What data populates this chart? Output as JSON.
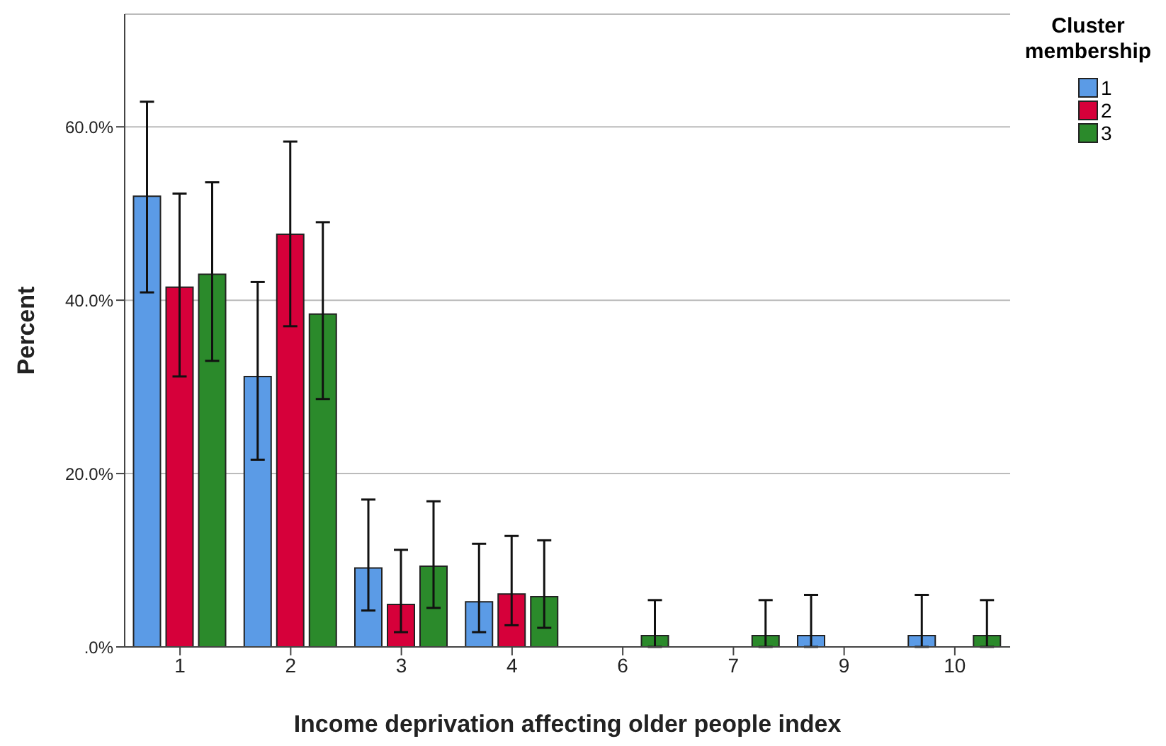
{
  "chart_data": {
    "type": "bar",
    "xlabel": "Income deprivation affecting older people index",
    "ylabel": "Percent",
    "legend_title": "Cluster membership",
    "categories": [
      "1",
      "2",
      "3",
      "4",
      "6",
      "7",
      "9",
      "10"
    ],
    "series": [
      {
        "name": "1",
        "color": "#5b9be6",
        "values": [
          52.0,
          31.2,
          9.1,
          5.2,
          0,
          0,
          1.3,
          1.3
        ],
        "errors": [
          [
            40.9,
            62.9
          ],
          [
            21.6,
            42.1
          ],
          [
            4.2,
            17.0
          ],
          [
            1.7,
            11.9
          ],
          null,
          null,
          [
            0,
            6.0
          ],
          [
            0,
            6.0
          ]
        ]
      },
      {
        "name": "2",
        "color": "#d6003a",
        "values": [
          41.5,
          47.6,
          4.9,
          6.1,
          0,
          0,
          0,
          0
        ],
        "errors": [
          [
            31.2,
            52.3
          ],
          [
            37.0,
            58.3
          ],
          [
            1.7,
            11.2
          ],
          [
            2.5,
            12.8
          ],
          null,
          null,
          null,
          null
        ]
      },
      {
        "name": "3",
        "color": "#2b8a2b",
        "values": [
          43.0,
          38.4,
          9.3,
          5.8,
          1.3,
          1.3,
          0,
          1.3
        ],
        "errors": [
          [
            33.0,
            53.6
          ],
          [
            28.6,
            49.0
          ],
          [
            4.5,
            16.8
          ],
          [
            2.2,
            12.3
          ],
          [
            0,
            5.4
          ],
          [
            0,
            5.4
          ],
          null,
          [
            0,
            5.4
          ]
        ]
      }
    ],
    "ylim": [
      0,
      73
    ],
    "yticks": [
      {
        "value": 0,
        "label": ".0%"
      },
      {
        "value": 20,
        "label": "20.0%"
      },
      {
        "value": 40,
        "label": "40.0%"
      },
      {
        "value": 60,
        "label": "60.0%"
      }
    ],
    "grid": "y",
    "legend": "top right"
  }
}
